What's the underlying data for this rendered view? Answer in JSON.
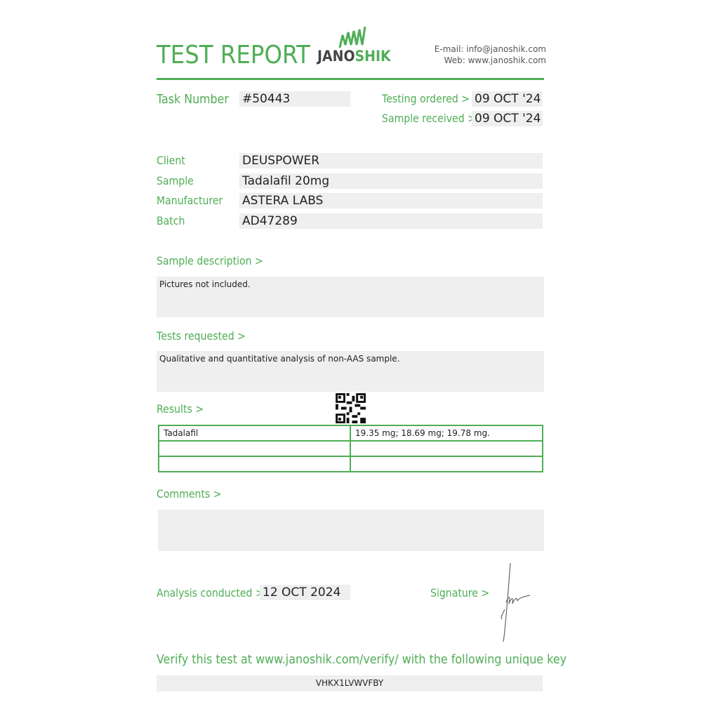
{
  "header": {
    "title": "TEST REPORT",
    "logo_text_a": "JANO",
    "logo_text_b": "SHIK",
    "email": "E-mail: info@janoshik.com",
    "web": "Web: www.janoshik.com"
  },
  "task": {
    "label": "Task Number",
    "value": "#50443"
  },
  "dates": {
    "ordered_label": "Testing ordered  >",
    "ordered": "09 OCT '24",
    "received_label": "Sample received >",
    "received": "09 OCT '24"
  },
  "fields": [
    {
      "label": "Client",
      "value": "DEUSPOWER"
    },
    {
      "label": "Sample",
      "value": "Tadalafil 20mg"
    },
    {
      "label": "Manufacturer",
      "value": "ASTERA LABS"
    },
    {
      "label": "Batch",
      "value": "AD47289"
    }
  ],
  "sample_description": {
    "label": "Sample description >",
    "text": "Pictures not included."
  },
  "tests_requested": {
    "label": "Tests requested >",
    "text": "Qualitative and quantitative analysis of non-AAS sample."
  },
  "results": {
    "label": "Results >",
    "rows": [
      [
        "Tadalafil",
        "19.35 mg; 18.69 mg; 19.78 mg."
      ],
      [
        "",
        ""
      ],
      [
        "",
        ""
      ]
    ]
  },
  "comments": {
    "label": "Comments >",
    "text": ""
  },
  "analysis": {
    "label": "Analysis conducted >",
    "date": "12 OCT 2024"
  },
  "signature": {
    "label": "Signature >"
  },
  "verify": {
    "text": "Verify this test at www.janoshik.com/verify/ with the following unique key",
    "key": "VHKX1LVWVFBY"
  },
  "colors": {
    "accent": "#4fae55",
    "field_bg": "#efefef"
  }
}
